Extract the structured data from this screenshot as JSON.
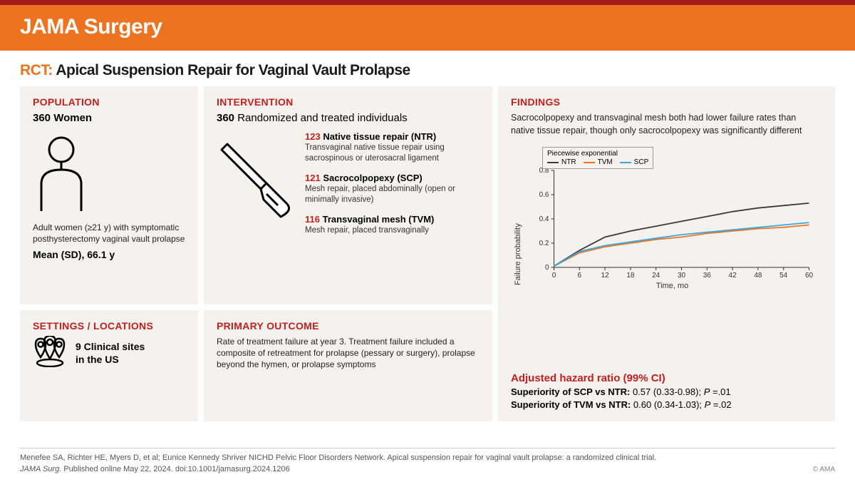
{
  "banner": {
    "title": "JAMA Surgery"
  },
  "title": {
    "prefix": "RCT:",
    "text": "Apical Suspension Repair for Vaginal Vault Prolapse"
  },
  "population": {
    "heading": "POPULATION",
    "n": "360 Women",
    "desc": "Adult women (≥21 y) with symptomatic posthysterectomy vaginal vault prolapse",
    "mean": "Mean (SD), 66.1 y"
  },
  "settings": {
    "heading": "SETTINGS / LOCATIONS",
    "line1": "9 Clinical sites",
    "line2": "in the US"
  },
  "intervention": {
    "heading": "INTERVENTION",
    "summary_n": "360",
    "summary_text": " Randomized and treated individuals",
    "items": [
      {
        "n": "123",
        "label": " Native tissue repair (NTR)",
        "desc": "Transvaginal native tissue repair using sacrospinous or uterosacral ligament"
      },
      {
        "n": "121",
        "label": " Sacrocolpopexy (SCP)",
        "desc": "Mesh repair, placed abdominally (open or minimally invasive)"
      },
      {
        "n": "116",
        "label": " Transvaginal mesh (TVM)",
        "desc": "Mesh repair, placed transvaginally"
      }
    ]
  },
  "outcome": {
    "heading": "PRIMARY OUTCOME",
    "text": "Rate of treatment failure at year 3. Treatment failure included a composite of retreatment for prolapse (pessary or surgery), prolapse beyond the hymen, or prolapse symptoms"
  },
  "findings": {
    "heading": "FINDINGS",
    "desc": "Sacrocolpopexy and transvaginal mesh both had lower failure rates than native tissue repair, though only sacrocolpopexy was significantly different",
    "chart": {
      "type": "line",
      "legend_title": "Piecewise exponential",
      "ylabel": "Failure probability",
      "xlabel": "Time, mo",
      "ylim": [
        0,
        0.8
      ],
      "ytick_step": 0.2,
      "xlim": [
        0,
        60
      ],
      "xtick_step": 6,
      "background_color": "#f5f2ee",
      "axis_color": "#333333",
      "series": [
        {
          "name": "NTR",
          "color": "#3a3a3a",
          "points": [
            [
              0,
              0.01
            ],
            [
              6,
              0.14
            ],
            [
              12,
              0.25
            ],
            [
              18,
              0.3
            ],
            [
              24,
              0.34
            ],
            [
              30,
              0.38
            ],
            [
              36,
              0.42
            ],
            [
              42,
              0.46
            ],
            [
              48,
              0.49
            ],
            [
              54,
              0.51
            ],
            [
              60,
              0.53
            ]
          ]
        },
        {
          "name": "TVM",
          "color": "#ed7321",
          "points": [
            [
              0,
              0.01
            ],
            [
              6,
              0.12
            ],
            [
              12,
              0.17
            ],
            [
              18,
              0.2
            ],
            [
              24,
              0.23
            ],
            [
              30,
              0.25
            ],
            [
              36,
              0.28
            ],
            [
              42,
              0.3
            ],
            [
              48,
              0.32
            ],
            [
              54,
              0.33
            ],
            [
              60,
              0.35
            ]
          ]
        },
        {
          "name": "SCP",
          "color": "#3aa7e0",
          "points": [
            [
              0,
              0.01
            ],
            [
              6,
              0.13
            ],
            [
              12,
              0.18
            ],
            [
              18,
              0.21
            ],
            [
              24,
              0.24
            ],
            [
              30,
              0.27
            ],
            [
              36,
              0.29
            ],
            [
              42,
              0.31
            ],
            [
              48,
              0.33
            ],
            [
              54,
              0.35
            ],
            [
              60,
              0.37
            ]
          ]
        }
      ]
    },
    "ahr_title": "Adjusted hazard ratio (99% CI)",
    "ahr": [
      {
        "label": "Superiority of SCP vs NTR:",
        "val": " 0.57 (0.33-0.98); ",
        "p": "P",
        "pval": " =.01"
      },
      {
        "label": "Superiority of TVM vs NTR:",
        "val": " 0.60 (0.34-1.03); ",
        "p": "P",
        "pval": " =.02"
      }
    ]
  },
  "citation": {
    "text": "Menefee SA, Richter HE, Myers D, et al; Eunice Kennedy Shriver NICHD Pelvic Floor Disorders Network. Apical suspension repair for vaginal vault prolapse: a randomized clinical trial.",
    "journal": "JAMA Surg.",
    "pub": " Published online May 22, 2024. doi:10.1001/jamasurg.2024.1206",
    "copyright": "© AMA"
  },
  "colors": {
    "accent": "#ed7321",
    "red": "#c41e1e",
    "bar": "#a51a1a"
  }
}
